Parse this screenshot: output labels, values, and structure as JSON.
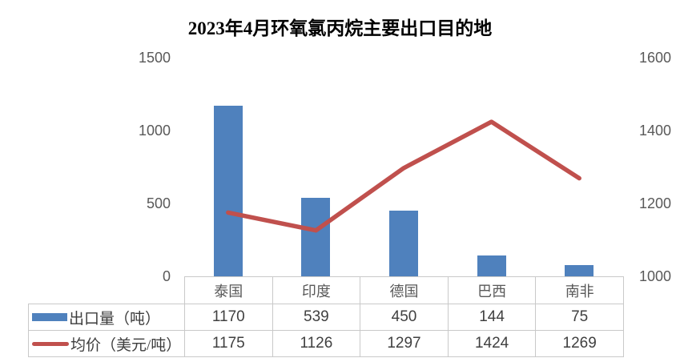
{
  "title": "2023年4月环氧氯丙烷主要出口目的地",
  "chart_data": {
    "type": "bar",
    "title": "2023年4月环氧氯丙烷主要出口目的地",
    "categories": [
      "泰国",
      "印度",
      "德国",
      "巴西",
      "南非"
    ],
    "series": [
      {
        "name": "出口量（吨）",
        "type": "bar",
        "axis": "left",
        "values": [
          1170,
          539,
          450,
          144,
          75
        ],
        "color": "#4f81bd"
      },
      {
        "name": "均价（美元/吨）",
        "type": "line",
        "axis": "right",
        "values": [
          1175,
          1126,
          1297,
          1424,
          1269
        ],
        "color": "#c0504d"
      }
    ],
    "left_axis": {
      "min": 0,
      "max": 1500,
      "ticks": [
        "1500",
        "1000",
        "500",
        "0"
      ],
      "tick_values": [
        1500,
        1000,
        500,
        0
      ]
    },
    "right_axis": {
      "min": 1000,
      "max": 1600,
      "ticks": [
        "1600",
        "1400",
        "1200",
        "1000"
      ],
      "tick_values": [
        1600,
        1400,
        1200,
        1000
      ]
    },
    "grid": false,
    "legend_position": "table-left-column",
    "data_table_shown": true
  },
  "colors": {
    "bar": "#4f81bd",
    "line": "#c0504d",
    "table_border": "#c9c9c9",
    "tick_text": "#595959",
    "category_text": "#595959",
    "value_text": "#404040",
    "title_text": "#000000",
    "background": "#ffffff"
  }
}
